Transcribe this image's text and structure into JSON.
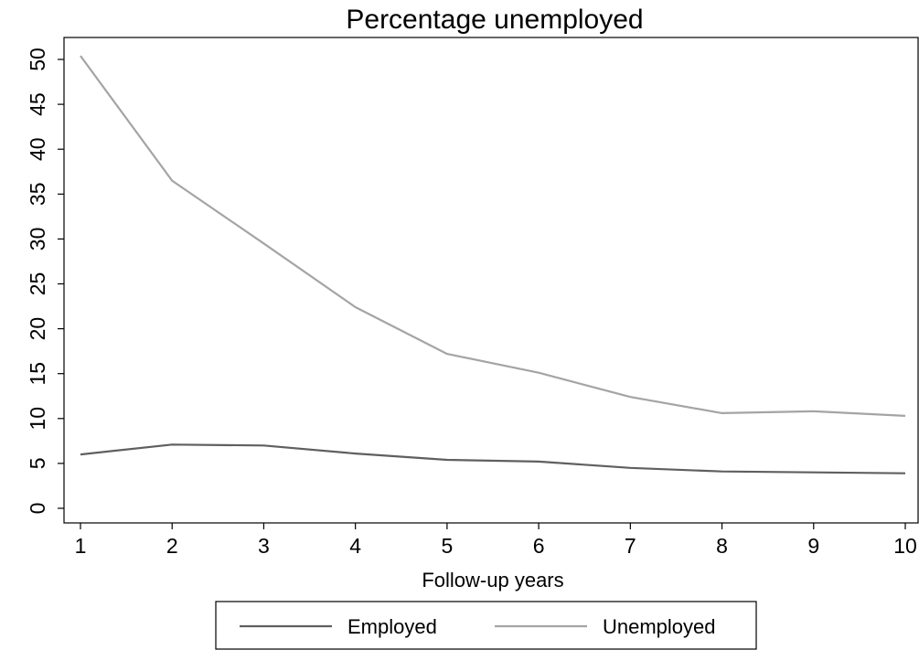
{
  "chart_data": {
    "type": "line",
    "title": "Percentage unemployed",
    "xlabel": "Follow-up years",
    "ylabel": "",
    "x": [
      1,
      2,
      3,
      4,
      5,
      6,
      7,
      8,
      9,
      10
    ],
    "x_ticks": [
      "1",
      "2",
      "3",
      "4",
      "5",
      "6",
      "7",
      "8",
      "9",
      "10"
    ],
    "y_ticks": [
      "0",
      "5",
      "10",
      "15",
      "20",
      "25",
      "30",
      "35",
      "40",
      "45",
      "50"
    ],
    "xlim": [
      1,
      10
    ],
    "ylim": [
      0,
      50
    ],
    "grid": false,
    "legend_position": "bottom",
    "series": [
      {
        "name": "Employed",
        "color": "#5f5f5f",
        "values": [
          6.0,
          7.1,
          7.0,
          6.1,
          5.4,
          5.2,
          4.5,
          4.1,
          4.0,
          3.9
        ]
      },
      {
        "name": "Unemployed",
        "color": "#a4a4a4",
        "values": [
          50.4,
          36.5,
          29.5,
          22.4,
          17.2,
          15.1,
          12.4,
          10.6,
          10.8,
          10.3
        ]
      }
    ]
  }
}
